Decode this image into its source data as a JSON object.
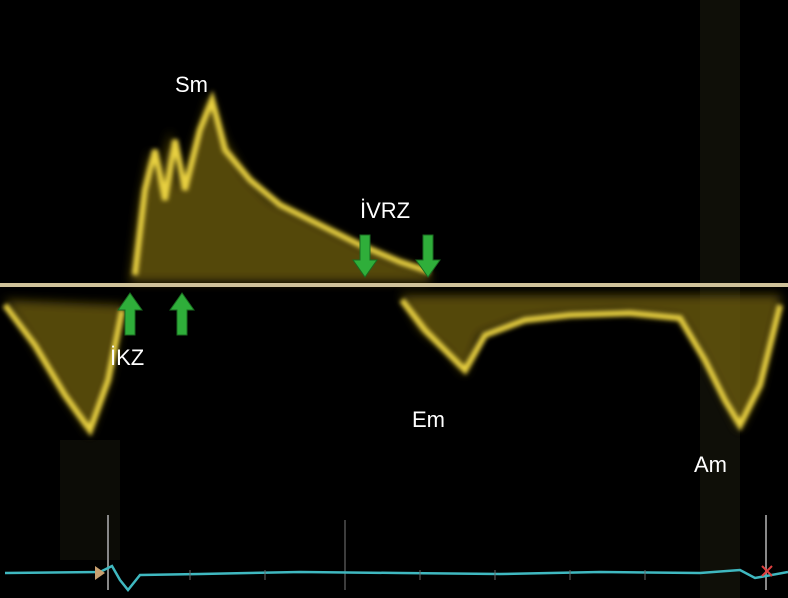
{
  "labels": {
    "sm": "Sm",
    "ivrz": "İVRZ",
    "ikz": "İKZ",
    "em": "Em",
    "am": "Am"
  }
}
